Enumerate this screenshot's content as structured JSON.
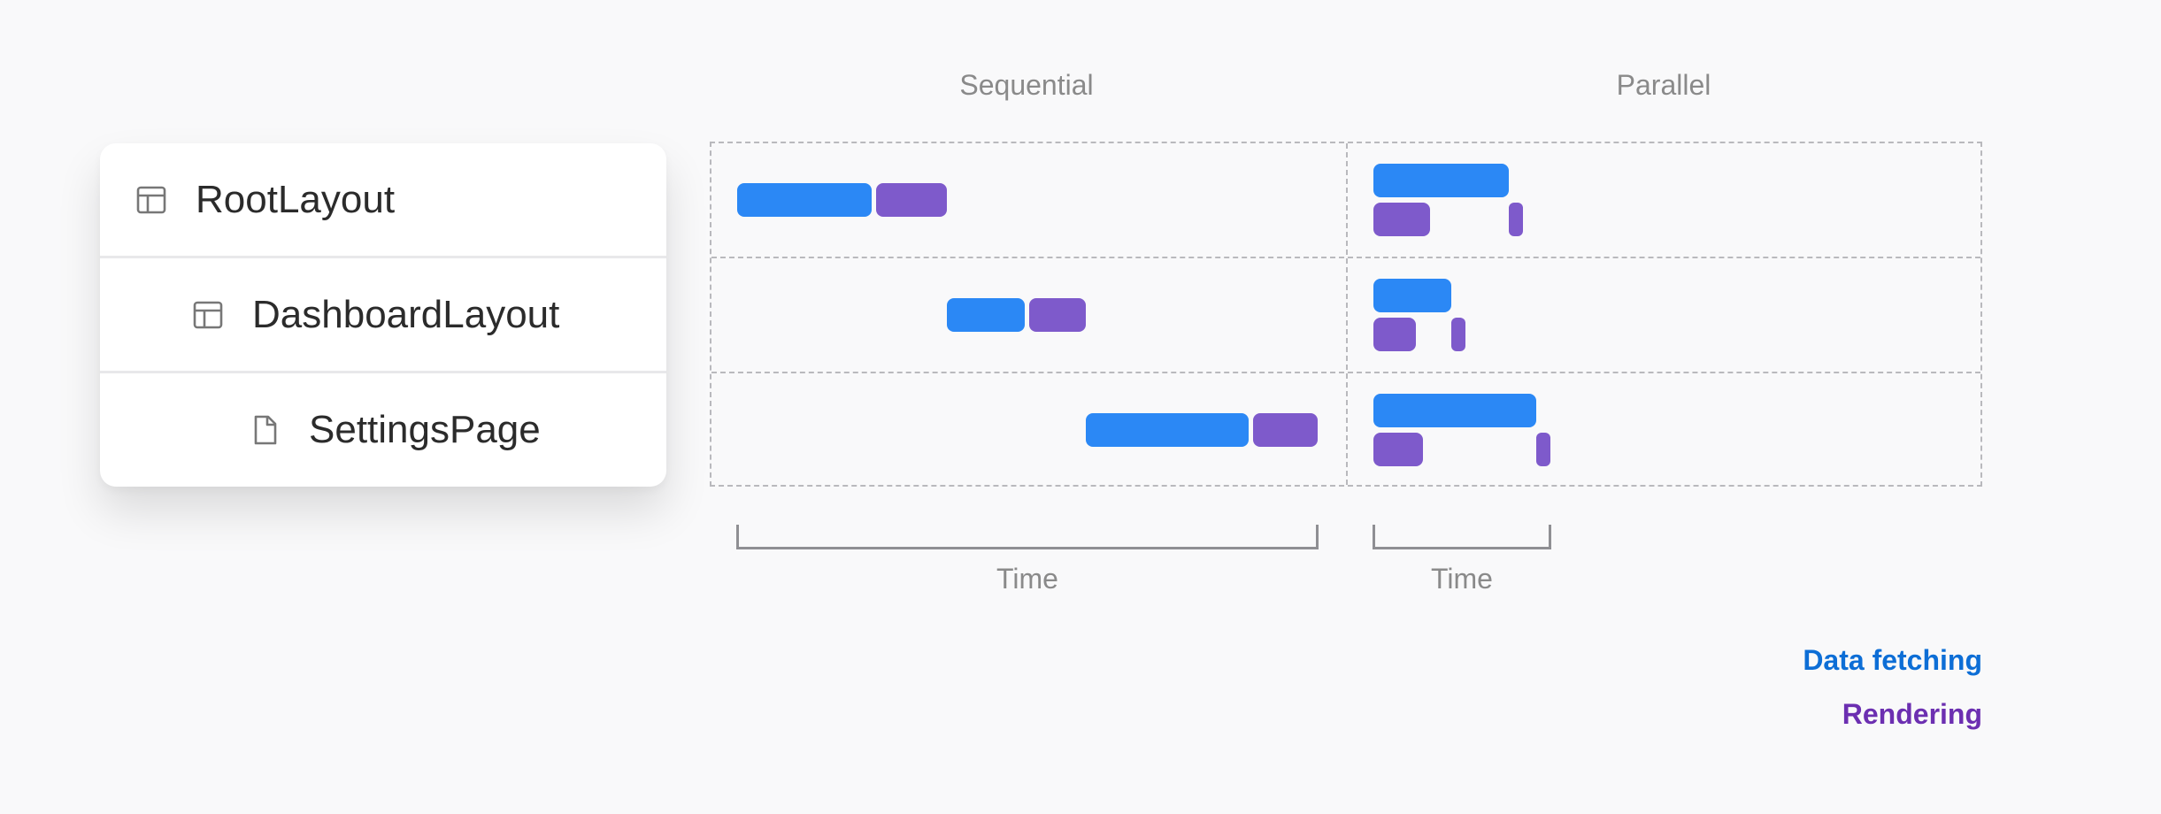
{
  "tree": {
    "items": [
      {
        "label": "RootLayout",
        "icon": "layout-icon"
      },
      {
        "label": "DashboardLayout",
        "icon": "layout-icon"
      },
      {
        "label": "SettingsPage",
        "icon": "file-icon"
      }
    ]
  },
  "columns": {
    "sequential_title": "Sequential",
    "parallel_title": "Parallel"
  },
  "axis": {
    "sequential_time_label": "Time",
    "parallel_time_label": "Time"
  },
  "legend": {
    "fetching_label": "Data fetching",
    "rendering_label": "Rendering"
  },
  "colors": {
    "fetching": "#2b88f5",
    "rendering": "#7e5acb",
    "legend_fetching": "#0d6ed6",
    "legend_rendering": "#6c2fb1"
  }
}
